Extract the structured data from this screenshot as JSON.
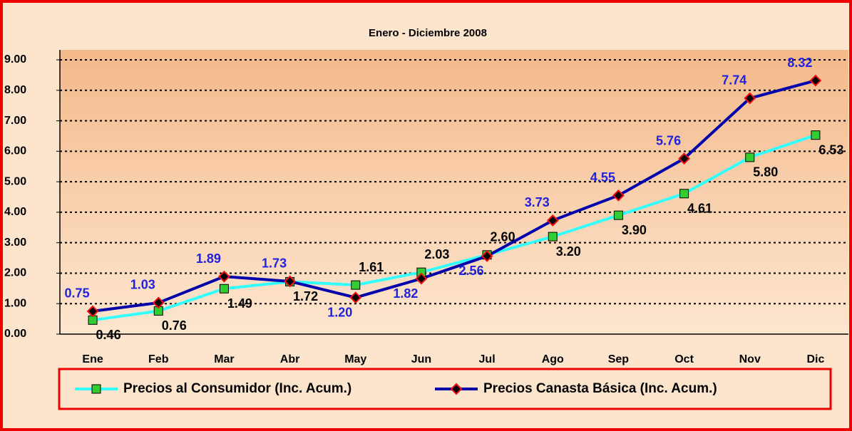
{
  "chart_data": {
    "type": "line",
    "title": "Enero - Diciembre 2008",
    "categories": [
      "Ene",
      "Feb",
      "Mar",
      "Abr",
      "May",
      "Jun",
      "Jul",
      "Ago",
      "Sep",
      "Oct",
      "Nov",
      "Dic"
    ],
    "series": [
      {
        "name": "Precios al Consumidor (Inc. Acum.)",
        "color": "#33ffff",
        "marker": "square",
        "marker_color": "#33cc33",
        "label_color": "#000000",
        "values": [
          0.46,
          0.76,
          1.49,
          1.72,
          1.61,
          2.03,
          2.6,
          3.2,
          3.9,
          4.61,
          5.8,
          6.53
        ],
        "value_labels": [
          "0.46",
          "0.76",
          "1.49",
          "1.72",
          "1.61",
          "2.03",
          "2.60",
          "3.20",
          "3.90",
          "4.61",
          "5.80",
          "6.53"
        ]
      },
      {
        "name": "Precios Canasta Básica (Inc. Acum.)",
        "color": "#0000aa",
        "marker": "diamond",
        "marker_color": "#ee1111",
        "label_color": "#2222dd",
        "values": [
          0.75,
          1.03,
          1.89,
          1.73,
          1.2,
          1.82,
          2.56,
          3.73,
          4.55,
          5.76,
          7.74,
          8.32
        ],
        "value_labels": [
          "0.75",
          "1.03",
          "1.89",
          "1.73",
          "1.20",
          "1.82",
          "2.56",
          "3.73",
          "4.55",
          "5.76",
          "7.74",
          "8.32"
        ]
      }
    ],
    "ylim": [
      0,
      9
    ],
    "yticks": [
      {
        "value": 0,
        "label": "0.00"
      },
      {
        "value": 1,
        "label": "1.00"
      },
      {
        "value": 2,
        "label": "2.00"
      },
      {
        "value": 3,
        "label": "3.00"
      },
      {
        "value": 4,
        "label": "4.00"
      },
      {
        "value": 5,
        "label": "5.00"
      },
      {
        "value": 6,
        "label": "6.00"
      },
      {
        "value": 7,
        "label": "7.00"
      },
      {
        "value": 8,
        "label": "8.00"
      },
      {
        "value": 9,
        "label": "9.00"
      }
    ],
    "grid": true,
    "legend": "bottom"
  }
}
